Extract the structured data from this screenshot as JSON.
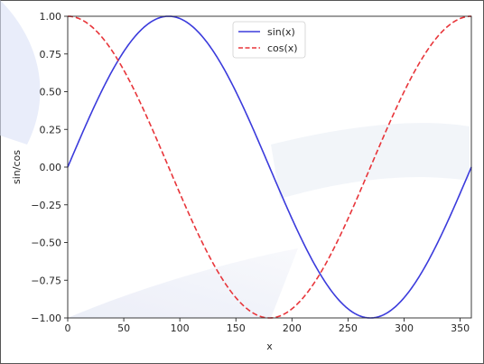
{
  "chart_data": {
    "type": "line",
    "title": "",
    "xlabel": "x",
    "ylabel": "sin/cos",
    "xlim": [
      0,
      360
    ],
    "ylim": [
      -1.0,
      1.0
    ],
    "xticks": [
      0,
      50,
      100,
      150,
      200,
      250,
      300,
      350
    ],
    "yticks": [
      -1.0,
      -0.75,
      -0.5,
      -0.25,
      0.0,
      0.25,
      0.5,
      0.75,
      1.0
    ],
    "xtick_labels": [
      "0",
      "50",
      "100",
      "150",
      "200",
      "250",
      "300",
      "350"
    ],
    "ytick_labels": [
      "−1.00",
      "−0.75",
      "−0.50",
      "−0.25",
      "0.00",
      "0.25",
      "0.50",
      "0.75",
      "1.00"
    ],
    "grid": false,
    "legend_position": "top-center",
    "series": [
      {
        "name": "sin(x)",
        "color": "#3b3bdc",
        "style": "solid",
        "x": [
          0,
          15,
          30,
          45,
          60,
          75,
          90,
          105,
          120,
          135,
          150,
          165,
          180,
          195,
          210,
          225,
          240,
          255,
          270,
          285,
          300,
          315,
          330,
          345,
          360
        ],
        "y": [
          0.0,
          0.259,
          0.5,
          0.707,
          0.866,
          0.966,
          1.0,
          0.966,
          0.866,
          0.707,
          0.5,
          0.259,
          0.0,
          -0.259,
          -0.5,
          -0.707,
          -0.866,
          -0.966,
          -1.0,
          -0.966,
          -0.866,
          -0.707,
          -0.5,
          -0.259,
          0.0
        ]
      },
      {
        "name": "cos(x)",
        "color": "#e8353a",
        "style": "dashed",
        "x": [
          0,
          15,
          30,
          45,
          60,
          75,
          90,
          105,
          120,
          135,
          150,
          165,
          180,
          195,
          210,
          225,
          240,
          255,
          270,
          285,
          300,
          315,
          330,
          345,
          360
        ],
        "y": [
          1.0,
          0.966,
          0.866,
          0.707,
          0.5,
          0.259,
          0.0,
          -0.259,
          -0.5,
          -0.707,
          -0.866,
          -0.966,
          -1.0,
          -0.966,
          -0.866,
          -0.707,
          -0.5,
          -0.259,
          0.0,
          0.259,
          0.5,
          0.707,
          0.866,
          0.966,
          1.0
        ]
      }
    ]
  }
}
